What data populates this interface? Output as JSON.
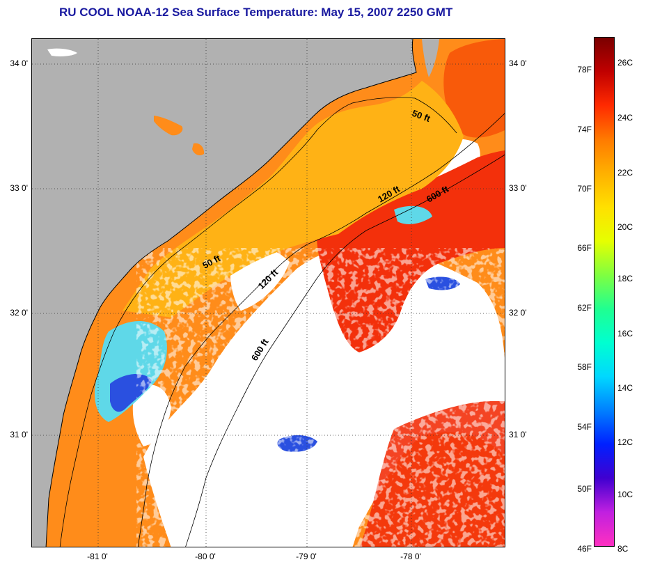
{
  "title": "RU COOL  NOAA-12  Sea Surface Temperature:  May 15, 2007 2250 GMT",
  "map": {
    "lat_labels": [
      "34 0'",
      "33 0'",
      "32 0'",
      "31 0'"
    ],
    "lon_labels": [
      "-81 0'",
      "-80 0'",
      "-79 0'",
      "-78 0'"
    ],
    "contour_labels": {
      "c50_north": "50 ft",
      "c50_south": "50 ft",
      "c120_north": "120 ft",
      "c120_south": "120 ft",
      "c600_north": "600 ft",
      "c600_south": "600 ft"
    },
    "colors": {
      "land": "#b1b1b1",
      "cloud": "#ffffff",
      "warm_water": "#ff8c1a",
      "hot_water": "#f3300b",
      "nearshore": "#ffb215",
      "cool_water": "#5fd8e8",
      "cold_water": "#2a50e0"
    }
  },
  "colorbar": {
    "fahrenheit_labels": [
      "78F",
      "74F",
      "70F",
      "66F",
      "62F",
      "58F",
      "54F",
      "50F",
      "46F"
    ],
    "celsius_labels": [
      "26C",
      "24C",
      "22C",
      "20C",
      "18C",
      "16C",
      "14C",
      "12C",
      "10C",
      "8C"
    ],
    "gradient": [
      "#7a0000",
      "#c00000",
      "#ff2a00",
      "#ff7a00",
      "#ffb000",
      "#ffe000",
      "#e6ff00",
      "#80ff40",
      "#20ff90",
      "#00ffd0",
      "#00d8ff",
      "#0080ff",
      "#0020ff",
      "#4000d0",
      "#c020e0",
      "#ff30c0"
    ]
  }
}
